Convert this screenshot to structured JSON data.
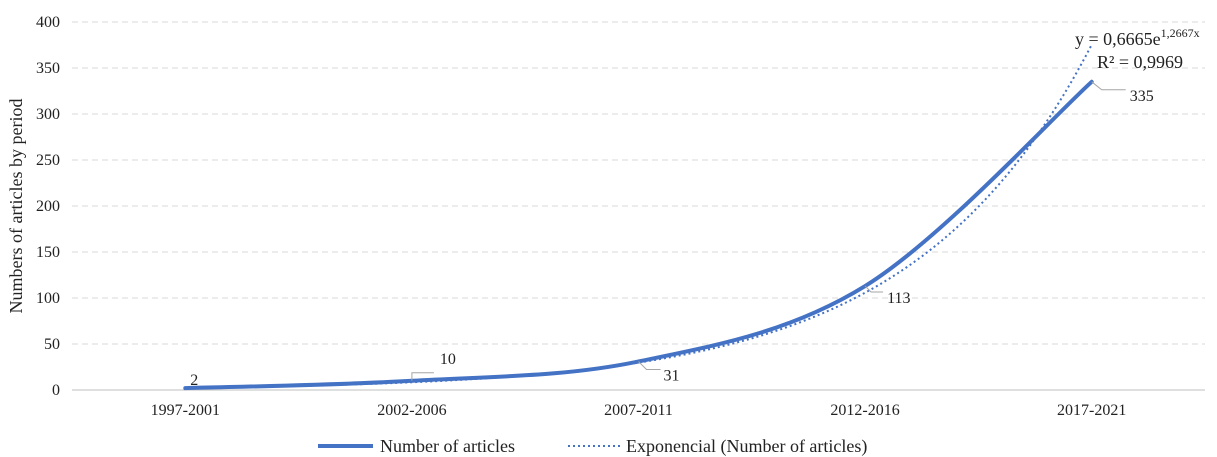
{
  "chart_data": {
    "type": "line",
    "categories": [
      "1997-2001",
      "2002-2006",
      "2007-2011",
      "2012-2016",
      "2017-2021"
    ],
    "ylabel": "Numbers of articles by period",
    "ylim": [
      0,
      400
    ],
    "yticks": [
      0,
      50,
      100,
      150,
      200,
      250,
      300,
      350,
      400
    ],
    "grid": true,
    "legend_placement": "bottom",
    "series": [
      {
        "name": "Number of articles",
        "values": [
          2,
          10,
          31,
          113,
          335
        ],
        "data_labels": [
          "2",
          "10",
          "31",
          "113",
          "335"
        ],
        "style": "solid",
        "color": "#4472C4"
      },
      {
        "name": "Exponencial (Number of articles)",
        "trendline": "exponential",
        "coefficient": 0.6665,
        "exponent": 1.2667,
        "style": "dotted",
        "color": "#4472C4"
      }
    ],
    "annotations": {
      "equation_prefix": "y = 0,6665e",
      "equation_exponent": "1,2667x",
      "r_squared": "R² = 0,9969"
    }
  }
}
